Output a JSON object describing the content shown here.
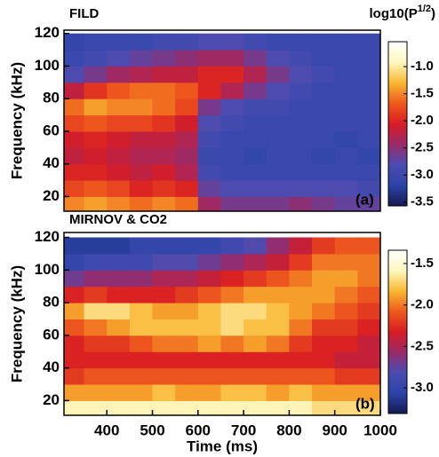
{
  "chart_data": [
    {
      "type": "heatmap",
      "title": "FILD",
      "colorbar_label": [
        "log10(P",
        "1/2",
        ")"
      ],
      "annotation": "(a)",
      "y_label": "Frequency (kHz)",
      "x_bins": [
        300,
        350,
        400,
        450,
        500,
        550,
        600,
        650,
        700,
        750,
        800,
        850,
        900,
        950,
        1000
      ],
      "y_bins": [
        10,
        20,
        30,
        40,
        50,
        60,
        70,
        80,
        90,
        100,
        110,
        120
      ],
      "xlim": [
        306,
        1000
      ],
      "ylim": [
        11,
        122
      ],
      "yticks": [
        20,
        40,
        60,
        80,
        100,
        120
      ],
      "clim": [
        -3.57,
        -0.54
      ],
      "cticks": [
        {
          "value": -1,
          "label": "-1.0"
        },
        -1.5,
        {
          "value": -2,
          "label": "-2.0"
        },
        -2.5,
        {
          "value": -3,
          "label": "-3.0"
        },
        -3.5
      ],
      "colormap": [
        "#141a52",
        "#2c44a8",
        "#4a4cb0",
        "#9a2a6a",
        "#d81c24",
        "#ee5a1c",
        "#f8b832",
        "#fff8c0",
        "#ffffff"
      ],
      "z": [
        [
          -1.5,
          -1.4,
          -1.5,
          -1.6,
          -1.5,
          -1.6,
          -2.4,
          -2.6,
          -2.6,
          -2.6,
          -2.5,
          -2.6,
          -2.7,
          -2.7
        ],
        [
          -1.8,
          -1.7,
          -1.8,
          -2.0,
          -1.9,
          -2.0,
          -2.7,
          -2.8,
          -2.8,
          -2.8,
          -2.8,
          -2.8,
          -2.8,
          -2.9
        ],
        [
          -2.0,
          -2.0,
          -2.1,
          -2.2,
          -2.1,
          -2.3,
          -2.9,
          -3.0,
          -3.0,
          -3.0,
          -3.0,
          -3.0,
          -3.0,
          -3.0
        ],
        [
          -2.2,
          -2.1,
          -2.2,
          -2.3,
          -2.3,
          -2.4,
          -3.0,
          -3.0,
          -3.1,
          -3.0,
          -3.0,
          -3.1,
          -3.0,
          -3.1
        ],
        [
          -2.1,
          -2.0,
          -2.1,
          -2.2,
          -2.2,
          -2.3,
          -2.9,
          -3.0,
          -3.0,
          -3.0,
          -3.0,
          -3.0,
          -3.1,
          -3.0
        ],
        [
          -1.8,
          -1.7,
          -1.8,
          -1.8,
          -1.9,
          -2.1,
          -2.8,
          -2.9,
          -3.0,
          -3.0,
          -3.0,
          -3.0,
          -3.0,
          -3.0
        ],
        [
          -1.6,
          -1.4,
          -1.5,
          -1.5,
          -1.6,
          -1.8,
          -2.6,
          -2.8,
          -2.9,
          -2.9,
          -3.0,
          -3.0,
          -3.0,
          -3.0
        ],
        [
          -2.2,
          -1.9,
          -1.7,
          -1.6,
          -1.6,
          -1.7,
          -2.0,
          -2.3,
          -2.6,
          -2.8,
          -2.9,
          -3.0,
          -3.0,
          -3.0
        ],
        [
          -2.8,
          -2.6,
          -2.4,
          -2.3,
          -2.2,
          -2.2,
          -2.0,
          -2.0,
          -2.3,
          -2.6,
          -2.8,
          -2.9,
          -3.0,
          -3.0
        ],
        [
          -3.0,
          -2.9,
          -2.8,
          -2.7,
          -2.6,
          -2.5,
          -2.4,
          -2.4,
          -2.6,
          -2.8,
          -2.9,
          -3.0,
          -3.0,
          -3.0
        ],
        [
          -3.1,
          -3.0,
          -3.0,
          -3.0,
          -2.9,
          -2.9,
          -2.8,
          -2.8,
          -2.9,
          -3.0,
          -3.0,
          -3.0,
          -3.0,
          -3.0
        ]
      ]
    },
    {
      "type": "heatmap",
      "title": "MIRNOV & CO2",
      "annotation": "(b)",
      "y_label": "Frequency (kHz)",
      "x_label": "Time (ms)",
      "x_bins": [
        300,
        350,
        400,
        450,
        500,
        550,
        600,
        650,
        700,
        750,
        800,
        850,
        900,
        950,
        1000
      ],
      "y_bins": [
        10,
        20,
        30,
        40,
        50,
        60,
        70,
        80,
        90,
        100,
        110,
        120
      ],
      "xlim": [
        306,
        1000
      ],
      "ylim": [
        11,
        123
      ],
      "xticks": [
        400,
        500,
        600,
        700,
        800,
        900,
        1000
      ],
      "yticks": [
        20,
        40,
        60,
        80,
        100,
        120
      ],
      "clim": [
        -3.31,
        -1.34
      ],
      "cticks": [
        -1.5,
        {
          "value": -2,
          "label": "-2.0"
        },
        -2.5,
        {
          "value": -3,
          "label": "-3.0"
        }
      ],
      "colormap": [
        "#141a52",
        "#2c44a8",
        "#4a4cb0",
        "#9a2a6a",
        "#d81c24",
        "#ee5a1c",
        "#f8b832",
        "#fff8c0",
        "#ffffff"
      ],
      "z": [
        [
          -1.6,
          -1.6,
          -1.6,
          -1.6,
          -1.6,
          -1.6,
          -1.6,
          -1.6,
          -1.6,
          -1.6,
          -1.6,
          -1.7,
          -1.7,
          -1.7
        ],
        [
          -1.9,
          -1.9,
          -1.9,
          -1.9,
          -1.8,
          -1.9,
          -1.9,
          -1.8,
          -1.8,
          -1.9,
          -1.8,
          -1.9,
          -1.9,
          -1.9
        ],
        [
          -2.2,
          -2.1,
          -2.1,
          -2.1,
          -2.1,
          -2.1,
          -2.1,
          -2.1,
          -2.1,
          -2.1,
          -2.1,
          -2.1,
          -2.2,
          -2.2
        ],
        [
          -2.3,
          -2.3,
          -2.3,
          -2.3,
          -2.3,
          -2.3,
          -2.3,
          -2.3,
          -2.3,
          -2.3,
          -2.3,
          -2.3,
          -2.4,
          -2.4
        ],
        [
          -2.3,
          -2.2,
          -2.2,
          -2.1,
          -2.0,
          -2.0,
          -1.9,
          -2.0,
          -1.9,
          -2.0,
          -2.2,
          -2.3,
          -2.3,
          -2.4
        ],
        [
          -2.1,
          -2.0,
          -1.9,
          -1.8,
          -1.8,
          -1.8,
          -1.8,
          -1.7,
          -1.8,
          -1.8,
          -2.0,
          -2.2,
          -2.2,
          -2.3
        ],
        [
          -1.9,
          -1.7,
          -1.7,
          -1.8,
          -1.9,
          -1.9,
          -1.8,
          -1.7,
          -1.7,
          -1.8,
          -1.9,
          -2.0,
          -2.1,
          -2.2
        ],
        [
          -2.3,
          -2.2,
          -2.3,
          -2.3,
          -2.3,
          -2.2,
          -2.1,
          -2.0,
          -1.9,
          -1.9,
          -1.9,
          -1.9,
          -2.0,
          -2.1
        ],
        [
          -2.7,
          -2.6,
          -2.6,
          -2.6,
          -2.5,
          -2.5,
          -2.4,
          -2.3,
          -2.2,
          -2.1,
          -2.0,
          -1.9,
          -1.9,
          -2.0
        ],
        [
          -3.0,
          -2.9,
          -2.9,
          -2.9,
          -2.8,
          -2.8,
          -2.7,
          -2.6,
          -2.5,
          -2.4,
          -2.2,
          -2.0,
          -2.0,
          -2.0
        ],
        [
          -3.1,
          -3.1,
          -3.1,
          -3.0,
          -3.0,
          -3.0,
          -3.0,
          -2.9,
          -2.8,
          -2.6,
          -2.4,
          -2.2,
          -2.1,
          -2.1
        ]
      ]
    }
  ]
}
